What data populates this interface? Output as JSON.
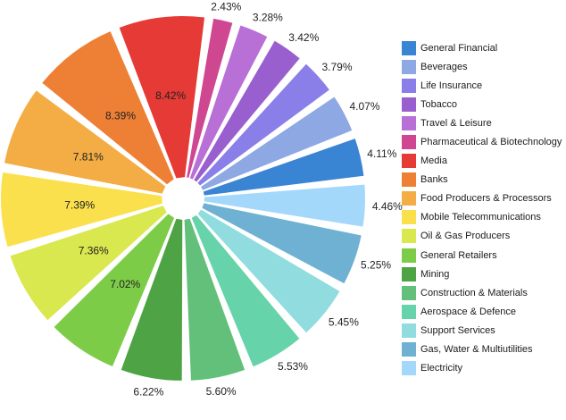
{
  "chart_data": {
    "type": "pie",
    "title": "",
    "start_category": "General Financial",
    "categories": [
      "General Financial",
      "Beverages",
      "Life Insurance",
      "Tobacco",
      "Travel & Leisure",
      "Pharmaceutical & Biotechnology",
      "Media",
      "Banks",
      "Food Producers & Processors",
      "Mobile Telecommunications",
      "Oil & Gas Producers",
      "General Retailers",
      "Mining",
      "Construction & Materials",
      "Aerospace & Defence",
      "Support Services",
      "Gas, Water & Multiutilities",
      "Electricity"
    ],
    "values": [
      4.11,
      4.07,
      3.79,
      3.42,
      3.28,
      2.43,
      8.42,
      8.39,
      7.81,
      7.39,
      7.36,
      7.02,
      6.22,
      5.6,
      5.53,
      5.45,
      5.25,
      4.46
    ],
    "value_labels": [
      "4.11%",
      "4.07%",
      "3.79%",
      "3.42%",
      "3.28%",
      "2.43%",
      "8.42%",
      "8.39%",
      "7.81%",
      "7.39%",
      "7.36%",
      "7.02%",
      "6.22%",
      "5.60%",
      "5.53%",
      "5.45%",
      "5.25%",
      "4.46%"
    ],
    "label_inside": [
      false,
      false,
      false,
      false,
      false,
      false,
      true,
      true,
      true,
      true,
      true,
      true,
      false,
      false,
      false,
      false,
      false,
      false
    ],
    "colors": [
      "#3a84d4",
      "#8ea8e4",
      "#8a7ee8",
      "#9a5fcf",
      "#b86fd6",
      "#d04791",
      "#e53a35",
      "#ee8036",
      "#f3ad44",
      "#fbe04d",
      "#d9e84f",
      "#7dcc48",
      "#4ea344",
      "#63c07a",
      "#66d3aa",
      "#90dcdf",
      "#6fb1d2",
      "#a4d8fb"
    ],
    "legend_position": "right"
  }
}
